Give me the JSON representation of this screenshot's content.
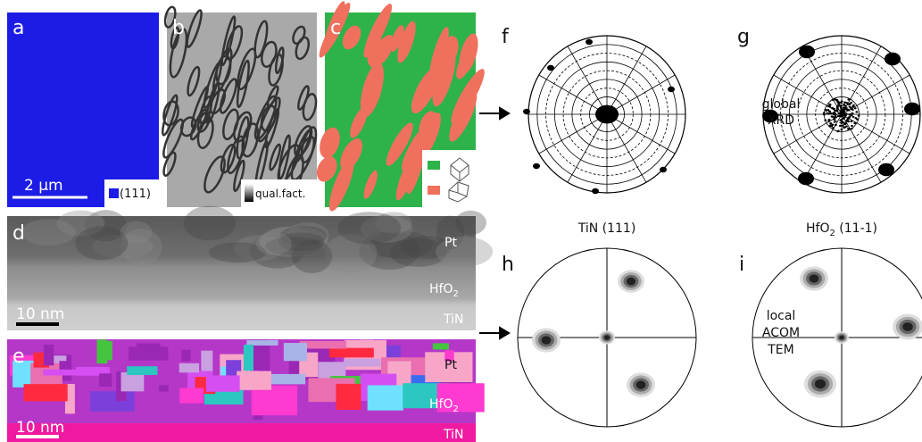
{
  "panels": {
    "a": {
      "label": "a",
      "scale": "2 µm",
      "legend": "(111)"
    },
    "b": {
      "label": "b",
      "legend": "qual.fact."
    },
    "c": {
      "label": "c"
    },
    "d": {
      "label": "d",
      "scale": "10 nm",
      "layers": {
        "pt": "Pt",
        "hfo": "HfO",
        "hfo_sub": "2",
        "tin": "TiN"
      }
    },
    "e": {
      "label": "e",
      "scale": "10 nm",
      "layers": {
        "pt": "Pt",
        "hfo": "HfO",
        "hfo_sub": "2",
        "tin": "TiN"
      }
    },
    "f": {
      "label": "f",
      "caption": "TiN (111)"
    },
    "g": {
      "label": "g",
      "caption_main": "HfO",
      "caption_sub": "2",
      "caption_rest": " (11-1)"
    },
    "h": {
      "label": "h"
    },
    "i": {
      "label": "i"
    }
  },
  "side_labels": {
    "global": [
      "global",
      "XRD"
    ],
    "local": [
      "local",
      "ACOM",
      "TEM"
    ]
  }
}
